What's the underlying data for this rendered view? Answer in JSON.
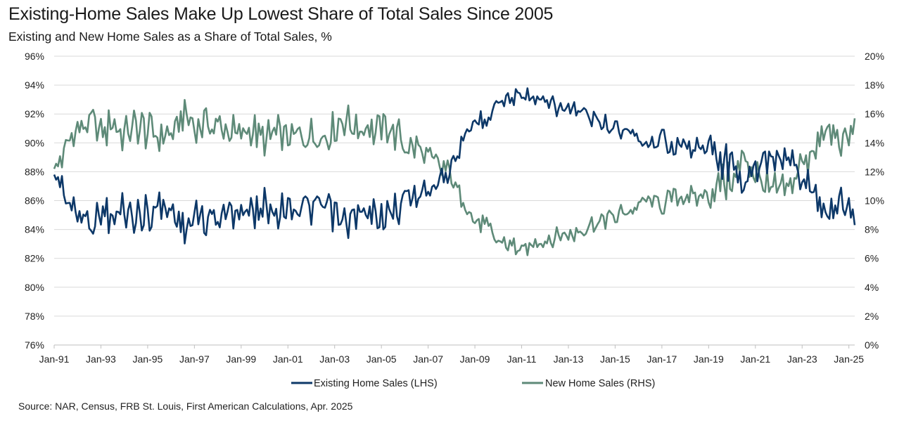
{
  "title": "Existing-Home Sales Make Up Lowest Share of Total Sales Since 2005",
  "subtitle": "Existing and New Home Sales as a Share of Total Sales, %",
  "source": "Source: NAR, Census, FRB St. Louis, First American Calculations, Apr. 2025",
  "colors": {
    "existing": "#0d3868",
    "new": "#5e8a78",
    "grid": "#d9d9d9",
    "axis": "#bfbfbf"
  },
  "chart_data": {
    "type": "line",
    "x_ticks": [
      "Jan-91",
      "Jan-93",
      "Jan-95",
      "Jan-97",
      "Jan-99",
      "Jan-01",
      "Jan-03",
      "Jan-05",
      "Jan-07",
      "Jan-09",
      "Jan-11",
      "Jan-13",
      "Jan-15",
      "Jan-17",
      "Jan-19",
      "Jan-21",
      "Jan-23",
      "Jan-25"
    ],
    "y_left_ticks": [
      "76%",
      "78%",
      "80%",
      "82%",
      "84%",
      "86%",
      "88%",
      "90%",
      "92%",
      "94%",
      "96%"
    ],
    "y_right_ticks": [
      "0%",
      "2%",
      "4%",
      "6%",
      "8%",
      "10%",
      "12%",
      "14%",
      "16%",
      "18%",
      "20%"
    ],
    "ylim_left": [
      76,
      96
    ],
    "ylim_right": [
      0,
      20
    ],
    "x_range": [
      "1991-01",
      "2025-03"
    ],
    "grid": "horizontal",
    "legend": "bottom-center",
    "series_points_note": "approximate yearly values, existing = 100 - new",
    "x": [
      1991,
      1991.5,
      1992,
      1992.5,
      1993,
      1993.5,
      1994,
      1994.5,
      1995,
      1995.5,
      1996,
      1996.5,
      1997,
      1997.5,
      1998,
      1998.5,
      1999,
      1999.5,
      2000,
      2000.5,
      2001,
      2001.5,
      2002,
      2002.5,
      2003,
      2003.5,
      2004,
      2004.5,
      2005,
      2005.5,
      2006,
      2006.5,
      2007,
      2007.5,
      2008,
      2008.5,
      2009,
      2009.5,
      2010,
      2010.5,
      2011,
      2011.5,
      2012,
      2012.5,
      2013,
      2013.5,
      2014,
      2014.5,
      2015,
      2015.5,
      2016,
      2016.5,
      2017,
      2017.5,
      2018,
      2018.5,
      2019,
      2019.5,
      2020,
      2020.5,
      2021,
      2021.5,
      2022,
      2022.5,
      2023,
      2023.5,
      2024,
      2024.5,
      2025,
      2025.25
    ],
    "series": [
      {
        "name": "Existing Home Sales (LHS)",
        "axis": "left",
        "values": [
          87.8,
          86.5,
          85.2,
          84.6,
          85.5,
          84.8,
          85.6,
          84.7,
          85.2,
          85.6,
          85.1,
          84.5,
          84.6,
          84.9,
          84.8,
          85.1,
          85.4,
          85.2,
          85.7,
          85.3,
          85.4,
          85.7,
          85.2,
          85.6,
          84.8,
          84.7,
          84.9,
          85.0,
          84.9,
          85.2,
          86.0,
          86.5,
          86.9,
          87.6,
          88.5,
          90.0,
          91.5,
          91.8,
          92.8,
          93.0,
          93.6,
          93.1,
          92.7,
          92.6,
          92.4,
          92.1,
          91.6,
          91.3,
          91.0,
          90.9,
          90.4,
          90.1,
          90.3,
          89.6,
          89.6,
          89.9,
          89.4,
          88.7,
          88.8,
          87.0,
          87.9,
          89.0,
          89.5,
          89.0,
          87.6,
          86.2,
          85.5,
          85.6,
          86.3,
          84.3
        ]
      },
      {
        "name": "New Home Sales (RHS)",
        "axis": "right",
        "values": [
          12.2,
          13.5,
          14.8,
          15.4,
          14.5,
          15.2,
          14.4,
          15.3,
          14.8,
          14.4,
          14.9,
          15.5,
          15.4,
          15.1,
          15.2,
          14.9,
          14.6,
          14.8,
          14.3,
          14.7,
          14.6,
          14.3,
          14.8,
          14.4,
          15.2,
          15.3,
          15.1,
          15.0,
          15.1,
          14.8,
          14.0,
          13.5,
          13.1,
          12.4,
          11.5,
          10.0,
          8.5,
          8.2,
          7.2,
          7.0,
          6.4,
          6.9,
          7.3,
          7.4,
          7.6,
          7.9,
          8.4,
          8.7,
          9.0,
          9.1,
          9.6,
          9.9,
          9.7,
          10.4,
          10.4,
          10.1,
          10.6,
          11.3,
          11.2,
          13.0,
          12.1,
          11.0,
          10.5,
          11.0,
          12.4,
          13.8,
          14.5,
          14.4,
          13.7,
          15.7
        ]
      }
    ]
  }
}
